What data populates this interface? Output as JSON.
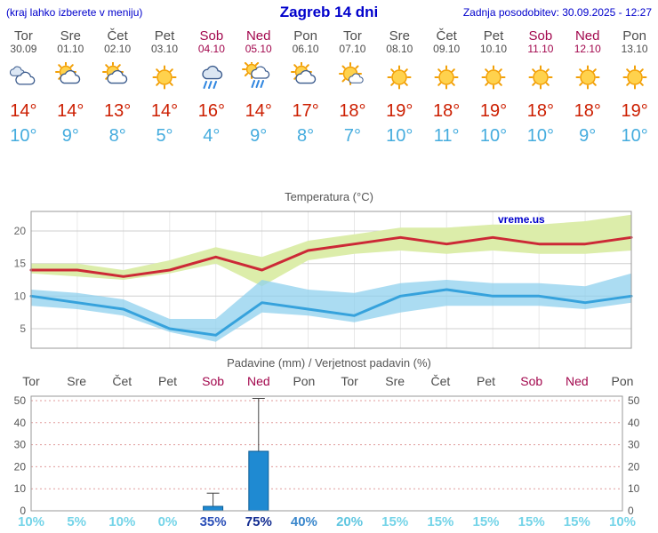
{
  "header": {
    "menu_hint": "(kraj lahko izberete v meniju)",
    "title": "Zagreb 14 dni",
    "last_update": "Zadnja posodobitev: 30.09.2025 - 12:27"
  },
  "colors": {
    "link_blue": "#0000cc",
    "weekday": "#4d4d4d",
    "weekend": "#a2074d",
    "high_temp": "#cc1e00",
    "low_temp": "#45acde"
  },
  "days": [
    {
      "name": "Tor",
      "date": "30.09",
      "weekend": false,
      "icon": "cloudy",
      "high": "14°",
      "low": "10°"
    },
    {
      "name": "Sre",
      "date": "01.10",
      "weekend": false,
      "icon": "partly-cloudy",
      "high": "14°",
      "low": "9°"
    },
    {
      "name": "Čet",
      "date": "02.10",
      "weekend": false,
      "icon": "partly-cloudy",
      "high": "13°",
      "low": "8°"
    },
    {
      "name": "Pet",
      "date": "03.10",
      "weekend": false,
      "icon": "sunny",
      "high": "14°",
      "low": "5°"
    },
    {
      "name": "Sob",
      "date": "04.10",
      "weekend": true,
      "icon": "rain",
      "high": "16°",
      "low": "4°"
    },
    {
      "name": "Ned",
      "date": "05.10",
      "weekend": true,
      "icon": "sun-rain",
      "high": "14°",
      "low": "9°"
    },
    {
      "name": "Pon",
      "date": "06.10",
      "weekend": false,
      "icon": "partly-cloudy",
      "high": "17°",
      "low": "8°"
    },
    {
      "name": "Tor",
      "date": "07.10",
      "weekend": false,
      "icon": "mostly-sunny",
      "high": "18°",
      "low": "7°"
    },
    {
      "name": "Sre",
      "date": "08.10",
      "weekend": false,
      "icon": "sunny",
      "high": "19°",
      "low": "10°"
    },
    {
      "name": "Čet",
      "date": "09.10",
      "weekend": false,
      "icon": "sunny",
      "high": "18°",
      "low": "11°"
    },
    {
      "name": "Pet",
      "date": "10.10",
      "weekend": false,
      "icon": "sunny",
      "high": "19°",
      "low": "10°"
    },
    {
      "name": "Sob",
      "date": "11.10",
      "weekend": true,
      "icon": "sunny",
      "high": "18°",
      "low": "10°"
    },
    {
      "name": "Ned",
      "date": "12.10",
      "weekend": true,
      "icon": "sunny",
      "high": "18°",
      "low": "9°"
    },
    {
      "name": "Pon",
      "date": "13.10",
      "weekend": false,
      "icon": "sunny",
      "high": "19°",
      "low": "10°"
    }
  ],
  "chart_data": [
    {
      "type": "line",
      "title": "Temperatura (°C)",
      "watermark": "vreme.us",
      "x_labels": [
        "Tor",
        "Sre",
        "Čet",
        "Pet",
        "Sob",
        "Ned",
        "Pon",
        "Tor",
        "Sre",
        "Čet",
        "Pet",
        "Sob",
        "Ned",
        "Pon"
      ],
      "ylim": [
        2,
        23
      ],
      "yticks": [
        5,
        10,
        15,
        20
      ],
      "grid": true,
      "legend": "none",
      "series": [
        {
          "name": "high",
          "color": "#cc2936",
          "values": [
            14,
            14,
            13,
            14,
            16,
            14,
            17,
            18,
            19,
            18,
            19,
            18,
            18,
            19
          ]
        },
        {
          "name": "low",
          "color": "#36a2dc",
          "values": [
            10,
            9,
            8,
            5,
            4,
            9,
            8,
            7,
            10,
            11,
            10,
            10,
            9,
            10
          ]
        }
      ],
      "bands": [
        {
          "name": "high-range",
          "color": "#dcedaa",
          "upper": [
            15,
            15,
            14,
            15.5,
            17.5,
            16,
            18.5,
            19.5,
            20.5,
            20.5,
            21,
            21,
            21.5,
            22.5
          ],
          "lower": [
            13.5,
            13,
            12.5,
            13.5,
            15,
            11.5,
            15.5,
            16.5,
            17,
            16.5,
            17,
            16.5,
            16.5,
            17
          ]
        },
        {
          "name": "low-range",
          "color": "#8fd0ee",
          "upper": [
            11,
            10.5,
            9.5,
            6.5,
            6.5,
            12.5,
            11,
            10.5,
            12,
            12.5,
            12,
            12,
            11.5,
            13.5
          ],
          "lower": [
            8.5,
            8,
            7,
            4.5,
            3,
            7.5,
            7,
            6,
            7.5,
            8.5,
            8.5,
            8.5,
            8,
            9
          ]
        }
      ]
    },
    {
      "type": "bar",
      "title": "Padavine (mm) / Verjetnost padavin (%)",
      "categories": [
        "Tor",
        "Sre",
        "Čet",
        "Pet",
        "Sob",
        "Ned",
        "Pon",
        "Tor",
        "Sre",
        "Čet",
        "Pet",
        "Sob",
        "Ned",
        "Pon"
      ],
      "weekend_flags": [
        false,
        false,
        false,
        false,
        true,
        true,
        false,
        false,
        false,
        false,
        false,
        true,
        true,
        false
      ],
      "ylim": [
        0,
        52
      ],
      "yticks": [
        0,
        10,
        20,
        30,
        40,
        50
      ],
      "bar_color": "#1f8ad2",
      "values_mm": [
        0,
        0,
        0,
        0,
        2,
        27,
        0,
        0,
        0,
        0,
        0,
        0,
        0,
        0
      ],
      "max_mm": [
        0,
        0,
        0,
        0,
        8,
        51,
        0,
        0,
        0,
        0,
        0,
        0,
        0,
        0
      ],
      "probabilities": [
        {
          "label": "10%",
          "color": "#74d4e8"
        },
        {
          "label": "5%",
          "color": "#74d4e8"
        },
        {
          "label": "10%",
          "color": "#74d4e8"
        },
        {
          "label": "0%",
          "color": "#74d4e8"
        },
        {
          "label": "35%",
          "color": "#2b4fb8"
        },
        {
          "label": "75%",
          "color": "#132d91"
        },
        {
          "label": "40%",
          "color": "#3a87cc"
        },
        {
          "label": "20%",
          "color": "#5fc6e0"
        },
        {
          "label": "15%",
          "color": "#74d4e8"
        },
        {
          "label": "15%",
          "color": "#74d4e8"
        },
        {
          "label": "15%",
          "color": "#74d4e8"
        },
        {
          "label": "15%",
          "color": "#74d4e8"
        },
        {
          "label": "15%",
          "color": "#74d4e8"
        },
        {
          "label": "10%",
          "color": "#74d4e8"
        }
      ]
    }
  ]
}
